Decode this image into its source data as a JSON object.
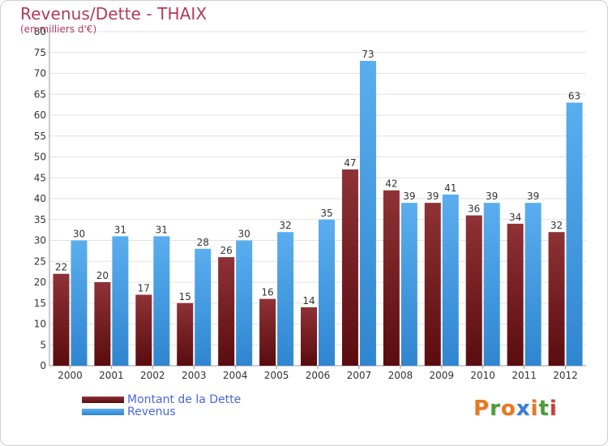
{
  "chart_data": {
    "type": "bar",
    "title": "Revenus/Dette - THAIX",
    "subtitle": "(en milliers d'€)",
    "categories": [
      "2000",
      "2001",
      "2002",
      "2003",
      "2004",
      "2005",
      "2006",
      "2007",
      "2008",
      "2009",
      "2010",
      "2011",
      "2012"
    ],
    "series": [
      {
        "name": "Montant de la Dette",
        "color": "#7a1f22",
        "values": [
          22,
          20,
          17,
          15,
          26,
          16,
          14,
          47,
          42,
          39,
          36,
          34,
          32
        ]
      },
      {
        "name": "Revenus",
        "color": "#4a9fe5",
        "values": [
          30,
          31,
          31,
          28,
          30,
          32,
          35,
          73,
          39,
          41,
          39,
          39,
          63
        ]
      }
    ],
    "ylim": [
      0,
      80
    ],
    "yticks": [
      0,
      5,
      10,
      15,
      20,
      25,
      30,
      35,
      40,
      45,
      50,
      55,
      60,
      65,
      70,
      75,
      80
    ],
    "grid": true,
    "legend": "bottom-left",
    "data_labels": true
  },
  "brand": {
    "text": "Proxiti",
    "letters": [
      {
        "char": "P",
        "color": "#e8791d"
      },
      {
        "char": "r",
        "color": "#4c9d3a"
      },
      {
        "char": "o",
        "color": "#e8791d"
      },
      {
        "char": "x",
        "color": "#3b7fd0"
      },
      {
        "char": "i",
        "color": "#e8791d"
      },
      {
        "char": "t",
        "color": "#4c9d3a"
      },
      {
        "char": "i",
        "color": "#cc3b3b"
      }
    ]
  }
}
